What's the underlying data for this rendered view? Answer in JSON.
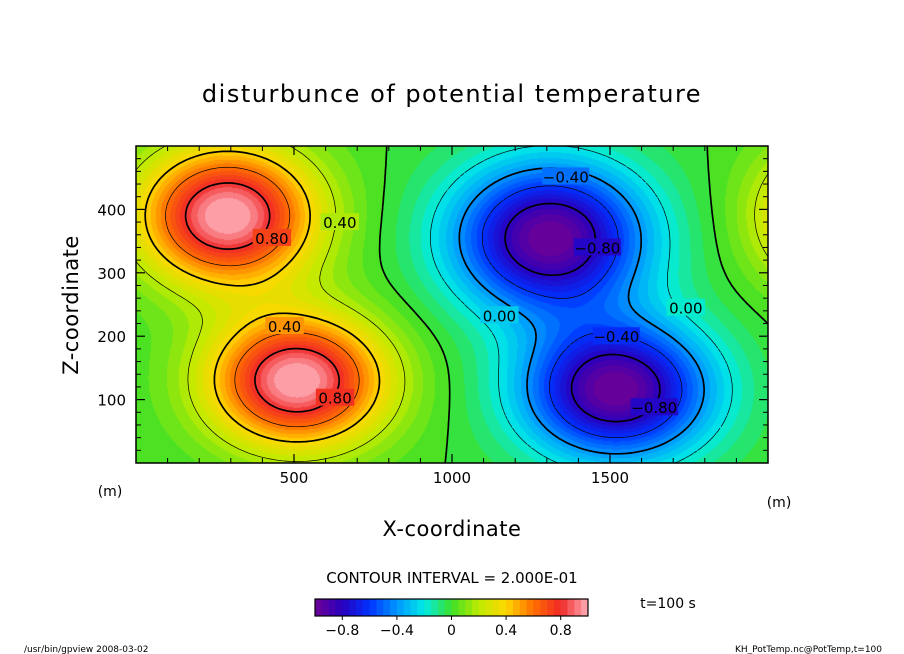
{
  "chart_data": {
    "type": "heatmap",
    "title": "disturbunce of potential temperature",
    "xlabel": "X-coordinate",
    "ylabel": "Z-coordinate",
    "x_unit": "(m)",
    "y_unit": "(m)",
    "xlim": [
      0,
      2000
    ],
    "ylim": [
      0,
      500
    ],
    "x_ticks": [
      500,
      1000,
      1500
    ],
    "y_ticks": [
      100,
      200,
      300,
      400
    ],
    "x_tick_labels": [
      "500",
      "1000",
      "1500"
    ],
    "y_tick_labels": [
      "100",
      "200",
      "300",
      "400"
    ],
    "contour_interval_text": "CONTOUR INTERVAL = 2.000E-01",
    "time_text": "t=100  s",
    "colorbar": {
      "min": -1.0,
      "max": 1.0,
      "ticks": [
        -0.8,
        -0.4,
        0,
        0.4,
        0.8
      ],
      "tick_labels": [
        "−0.8",
        "−0.4",
        "0",
        "0.4",
        "0.8"
      ]
    },
    "contour_labels": [
      {
        "text": "0.80",
        "x": 430,
        "z": 355
      },
      {
        "text": "0.40",
        "x": 645,
        "z": 380
      },
      {
        "text": "−0.40",
        "x": 1360,
        "z": 452
      },
      {
        "text": "−0.80",
        "x": 1460,
        "z": 340
      },
      {
        "text": "0.00",
        "x": 1150,
        "z": 233
      },
      {
        "text": "0.00",
        "x": 1740,
        "z": 245
      },
      {
        "text": "0.40",
        "x": 470,
        "z": 216
      },
      {
        "text": "0.80",
        "x": 630,
        "z": 103
      },
      {
        "text": "−0.40",
        "x": 1520,
        "z": 200
      },
      {
        "text": "−0.80",
        "x": 1640,
        "z": 88
      }
    ]
  },
  "footer": {
    "left": "/usr/bin/gpview   2008-03-02",
    "right": "KH_PotTemp.nc@PotTemp,t=100"
  },
  "colors": {
    "background": "#ffffff",
    "axis": "#000000"
  }
}
